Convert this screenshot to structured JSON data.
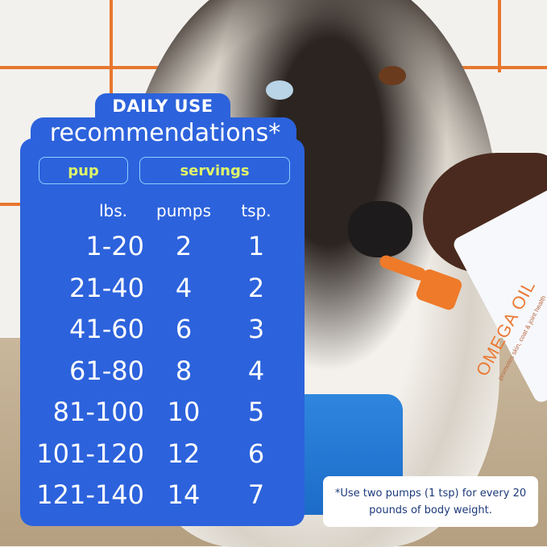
{
  "header": {
    "line1": "DAILY USE",
    "line2": "recommendations*"
  },
  "groups": {
    "pup": "pup",
    "servings": "servings"
  },
  "columns": [
    "lbs.",
    "pumps",
    "tsp."
  ],
  "rows": [
    [
      "1-20",
      "2",
      "1"
    ],
    [
      "21-40",
      "4",
      "2"
    ],
    [
      "41-60",
      "6",
      "3"
    ],
    [
      "61-80",
      "8",
      "4"
    ],
    [
      "81-100",
      "10",
      "5"
    ],
    [
      "101-120",
      "12",
      "6"
    ],
    [
      "121-140",
      "14",
      "7"
    ]
  ],
  "footnote": "*Use two pumps (1 tsp) for every 20 pounds of body weight.",
  "product": {
    "brand": "OMEGA OIL",
    "tagline": "promotes skin, coat & joint health"
  },
  "colors": {
    "panel": "#2c62dc",
    "accent": "#dff56a",
    "product_orange": "#ee7a2a"
  }
}
